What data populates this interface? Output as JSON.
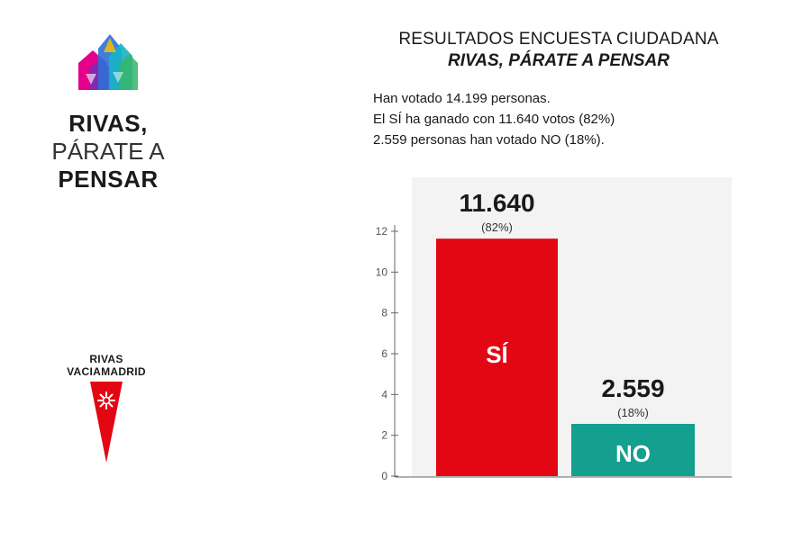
{
  "logos": {
    "campaign": {
      "line1": "RIVAS,",
      "line2": "PÁRATE A",
      "line3": "PENSAR",
      "colors": [
        "#e4008a",
        "#7b2bb5",
        "#2f6fd6",
        "#18b3c4",
        "#35b56b",
        "#f2c200"
      ]
    },
    "city": {
      "line1": "RIVAS",
      "line2": "VACIAMADRID",
      "shield_color": "#e30613"
    }
  },
  "header": {
    "title": "RESULTADOS ENCUESTA CIUDADANA",
    "subtitle": "RIVAS, PÁRATE A PENSAR"
  },
  "summary": {
    "line1": "Han votado 14.199 personas.",
    "line2": "El SÍ ha ganado con 11.640 votos (82%)",
    "line3": "2.559 personas han votado NO (18%)."
  },
  "chart_data": {
    "type": "bar",
    "categories": [
      "SÍ",
      "NO"
    ],
    "values": [
      11.64,
      2.559
    ],
    "value_labels": [
      "11.640",
      "2.559"
    ],
    "percent_labels": [
      "(82%)",
      "(18%)"
    ],
    "bar_colors": [
      "#e30613",
      "#13a08e"
    ],
    "ylim": [
      0,
      12
    ],
    "yticks": [
      0,
      2,
      4,
      6,
      8,
      10,
      12
    ],
    "grid": false,
    "background": "#f3f3f3",
    "xlabel": "",
    "ylabel": ""
  }
}
